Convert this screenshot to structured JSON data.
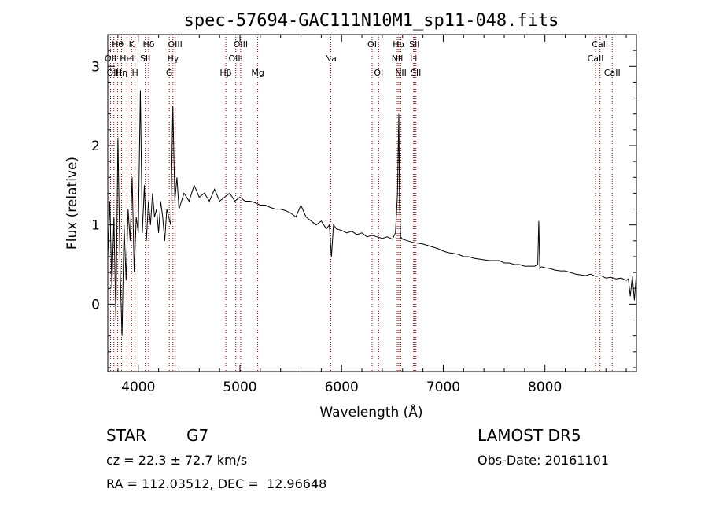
{
  "chart_data": {
    "type": "line",
    "title": "spec-57694-GAC111N10M1_sp11-048.fits",
    "xlabel": "Wavelength (Å)",
    "ylabel": "Flux (relative)",
    "xlim": [
      3700,
      8900
    ],
    "ylim": [
      -0.85,
      3.4
    ],
    "x_ticks": [
      4000,
      5000,
      6000,
      7000,
      8000
    ],
    "y_ticks": [
      0,
      1,
      2,
      3
    ],
    "grid": false,
    "series": [
      {
        "x": [
          3700,
          3720,
          3740,
          3760,
          3780,
          3800,
          3820,
          3840,
          3860,
          3880,
          3900,
          3920,
          3940,
          3960,
          3980,
          4000,
          4020,
          4040,
          4060,
          4080,
          4100,
          4120,
          4140,
          4160,
          4180,
          4200,
          4220,
          4240,
          4260,
          4280,
          4300,
          4320,
          4340,
          4360,
          4380,
          4400,
          4450,
          4500,
          4550,
          4600,
          4650,
          4700,
          4750,
          4800,
          4850,
          4900,
          4950,
          5000,
          5050,
          5100,
          5150,
          5200,
          5250,
          5300,
          5350,
          5400,
          5450,
          5500,
          5550,
          5600,
          5650,
          5700,
          5750,
          5800,
          5850,
          5880,
          5900,
          5920,
          5950,
          6000,
          6050,
          6100,
          6150,
          6200,
          6250,
          6300,
          6350,
          6400,
          6450,
          6500,
          6530,
          6550,
          6563,
          6570,
          6580,
          6600,
          6650,
          6700,
          6750,
          6800,
          6850,
          6900,
          6950,
          7000,
          7050,
          7100,
          7150,
          7200,
          7250,
          7300,
          7350,
          7400,
          7450,
          7500,
          7550,
          7600,
          7650,
          7700,
          7750,
          7800,
          7850,
          7900,
          7930,
          7940,
          7950,
          7960,
          7980,
          8000,
          8050,
          8100,
          8150,
          8200,
          8250,
          8300,
          8350,
          8400,
          8450,
          8500,
          8550,
          8600,
          8650,
          8700,
          8750,
          8800,
          8820,
          8840,
          8860,
          8880,
          8900
        ],
        "y": [
          0.6,
          1.3,
          0.2,
          1.1,
          -0.2,
          2.1,
          0.5,
          -0.4,
          1.0,
          0.3,
          1.2,
          0.8,
          1.6,
          0.4,
          1.1,
          0.9,
          2.7,
          0.9,
          1.5,
          0.8,
          1.3,
          1.0,
          1.4,
          1.1,
          1.2,
          0.9,
          1.3,
          1.1,
          0.8,
          1.2,
          1.1,
          1.0,
          2.5,
          1.3,
          1.6,
          1.2,
          1.4,
          1.3,
          1.5,
          1.35,
          1.4,
          1.3,
          1.45,
          1.3,
          1.35,
          1.4,
          1.3,
          1.35,
          1.3,
          1.3,
          1.28,
          1.25,
          1.25,
          1.22,
          1.2,
          1.2,
          1.18,
          1.15,
          1.1,
          1.25,
          1.1,
          1.05,
          1.0,
          1.05,
          0.95,
          1.0,
          0.6,
          1.0,
          0.95,
          0.93,
          0.9,
          0.92,
          0.88,
          0.9,
          0.85,
          0.87,
          0.85,
          0.83,
          0.85,
          0.82,
          0.9,
          1.4,
          2.4,
          1.3,
          0.85,
          0.82,
          0.8,
          0.78,
          0.77,
          0.76,
          0.74,
          0.72,
          0.7,
          0.67,
          0.65,
          0.64,
          0.63,
          0.6,
          0.6,
          0.58,
          0.57,
          0.56,
          0.55,
          0.55,
          0.55,
          0.52,
          0.52,
          0.5,
          0.5,
          0.48,
          0.48,
          0.48,
          0.5,
          1.05,
          0.45,
          0.47,
          0.47,
          0.46,
          0.45,
          0.43,
          0.42,
          0.42,
          0.4,
          0.38,
          0.37,
          0.36,
          0.38,
          0.35,
          0.36,
          0.33,
          0.34,
          0.32,
          0.33,
          0.3,
          0.32,
          0.1,
          0.35,
          0.05,
          0.4
        ]
      }
    ],
    "line_markers": [
      {
        "label": "Hθ",
        "wavelength": 3798,
        "row": 0
      },
      {
        "label": "OII",
        "wavelength": 3727,
        "row": 1
      },
      {
        "label": "OIII",
        "wavelength": 3760,
        "row": 2
      },
      {
        "label": "Hη",
        "wavelength": 3835,
        "row": 2
      },
      {
        "label": "HeI",
        "wavelength": 3889,
        "row": 1
      },
      {
        "label": "K",
        "wavelength": 3934,
        "row": 0
      },
      {
        "label": "H",
        "wavelength": 3968,
        "row": 2
      },
      {
        "label": "Hδ",
        "wavelength": 4102,
        "row": 0
      },
      {
        "label": "SII",
        "wavelength": 4069,
        "row": 1
      },
      {
        "label": "OIII",
        "wavelength": 4363,
        "row": 0
      },
      {
        "label": "Hγ",
        "wavelength": 4341,
        "row": 1
      },
      {
        "label": "G",
        "wavelength": 4305,
        "row": 2
      },
      {
        "label": "Hβ",
        "wavelength": 4861,
        "row": 2
      },
      {
        "label": "OIII",
        "wavelength": 5007,
        "row": 0
      },
      {
        "label": "OIII",
        "wavelength": 4959,
        "row": 1
      },
      {
        "label": "Mg",
        "wavelength": 5175,
        "row": 2
      },
      {
        "label": "Na",
        "wavelength": 5893,
        "row": 1
      },
      {
        "label": "OI",
        "wavelength": 6300,
        "row": 0
      },
      {
        "label": "OI",
        "wavelength": 6364,
        "row": 2
      },
      {
        "label": "Hα",
        "wavelength": 6563,
        "row": 0
      },
      {
        "label": "NII",
        "wavelength": 6548,
        "row": 1
      },
      {
        "label": "NII",
        "wavelength": 6583,
        "row": 2
      },
      {
        "label": "SII",
        "wavelength": 6716,
        "row": 0
      },
      {
        "label": "Li",
        "wavelength": 6708,
        "row": 1
      },
      {
        "label": "SII",
        "wavelength": 6731,
        "row": 2
      },
      {
        "label": "CaII",
        "wavelength": 8542,
        "row": 0
      },
      {
        "label": "CaII",
        "wavelength": 8498,
        "row": 1
      },
      {
        "label": "CaII",
        "wavelength": 8662,
        "row": 2
      }
    ],
    "colors": {
      "spectrum": "#000000",
      "markers": "#8b0000"
    }
  },
  "info": {
    "class_label": "STAR",
    "subclass_label": "G7",
    "survey": "LAMOST DR5",
    "cz": "cz = 22.3 ± 72.7 km/s",
    "obs_date": "Obs-Date: 20161101",
    "coords": "RA = 112.03512, DEC =  12.96648"
  }
}
